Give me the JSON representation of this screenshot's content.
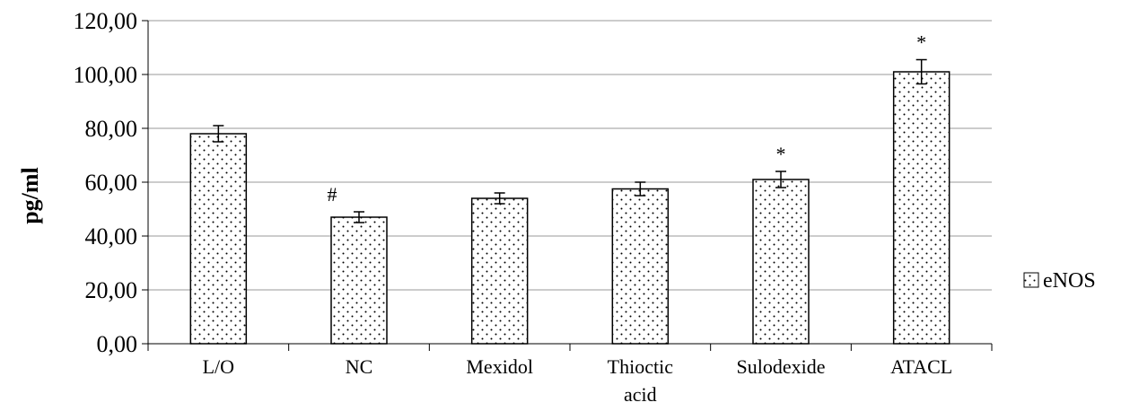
{
  "chart_data": {
    "type": "bar",
    "categories": [
      [
        "L/O"
      ],
      [
        "NC"
      ],
      [
        "Mexidol"
      ],
      [
        "Thioctic",
        "acid"
      ],
      [
        "Sulodexide"
      ],
      [
        "ATACL"
      ]
    ],
    "series": [
      {
        "name": "eNOS",
        "values": [
          78,
          47,
          54,
          57.5,
          61,
          101
        ],
        "errors": [
          3,
          2,
          2,
          2.5,
          3,
          4.5
        ],
        "annotations": [
          "",
          "#",
          "",
          "",
          "*",
          "*"
        ]
      }
    ],
    "ylabel": "pg/ml",
    "xlabel": "",
    "ylim": [
      0,
      120
    ],
    "yticks": [
      "0,00",
      "20,00",
      "40,00",
      "60,00",
      "80,00",
      "100,00",
      "120,00"
    ],
    "grid": true,
    "legend_position": "right",
    "colors": {
      "bar_fill": "#ffffff",
      "dots": "#000000",
      "grid": "#999999",
      "axis": "#000000"
    }
  }
}
